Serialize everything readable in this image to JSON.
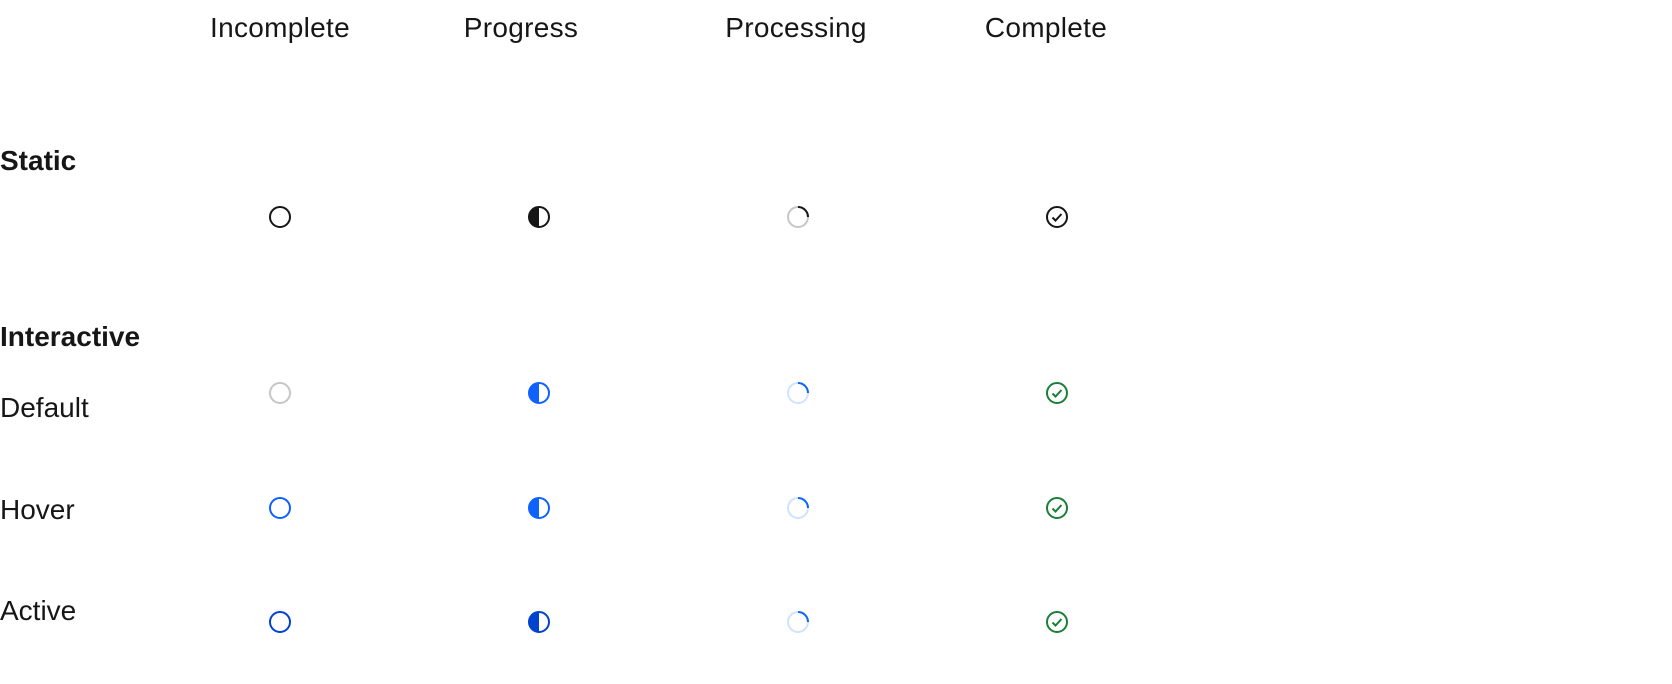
{
  "columns": [
    "Incomplete",
    "Progress",
    "Processing",
    "Complete"
  ],
  "sections": {
    "static": "Static",
    "interactive": "Interactive"
  },
  "rows": [
    "Default",
    "Hover",
    "Active"
  ],
  "colors": {
    "static": "#161616",
    "incomplete_default": "#c6c6c6",
    "blue": "#0f62fe",
    "blue_active": "#0043ce",
    "blue_light": "#d0e2ff",
    "processing_track_static": "#c6c6c6",
    "green": "#198038"
  },
  "icons": [
    "circle-outline-icon",
    "circle-half-filled-icon",
    "circle-processing-icon",
    "checkmark-circle-icon"
  ]
}
